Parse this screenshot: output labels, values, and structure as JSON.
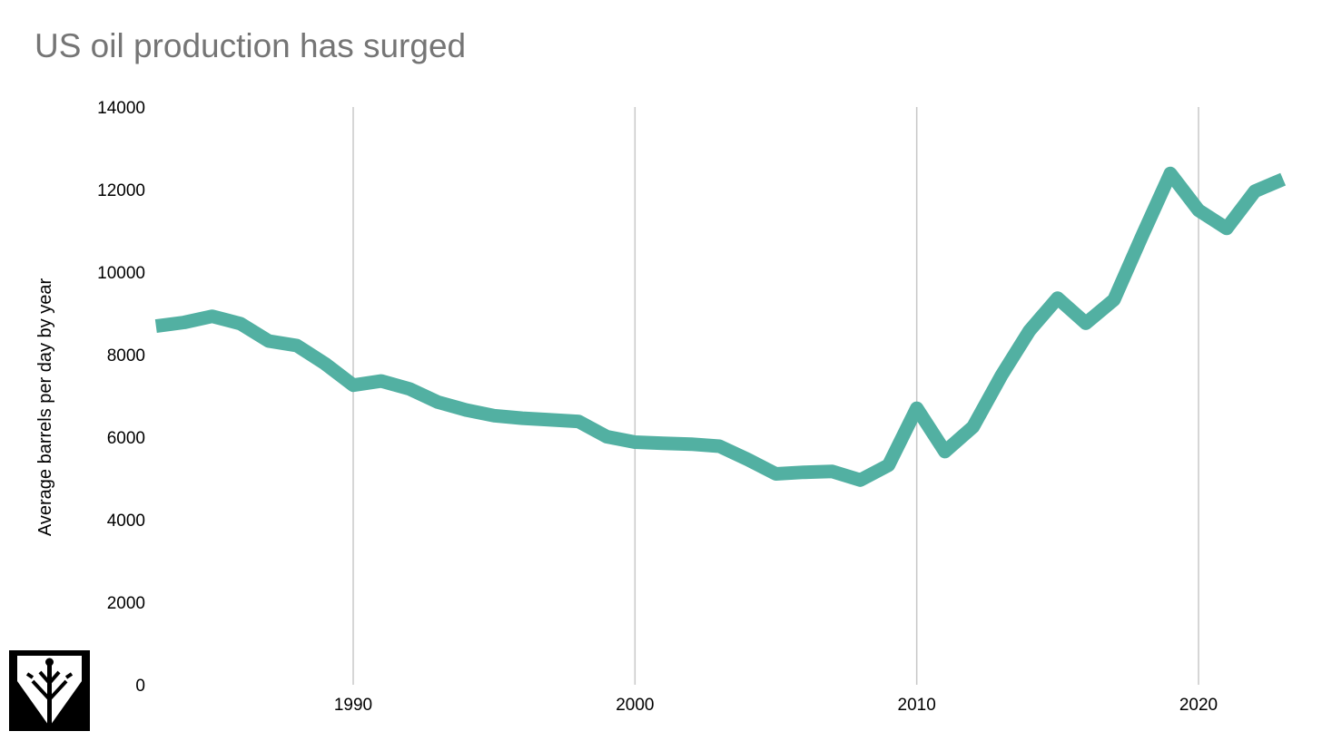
{
  "chart_data": {
    "type": "line",
    "title": "US oil production has surged",
    "xlabel": "",
    "ylabel": "Average barrels per day by year",
    "xlim": [
      1983,
      2023
    ],
    "ylim": [
      0,
      14000
    ],
    "x_ticks": [
      1990,
      2000,
      2010,
      2020
    ],
    "y_ticks": [
      0,
      2000,
      4000,
      6000,
      8000,
      10000,
      12000,
      14000
    ],
    "grid": {
      "vertical": true,
      "horizontal": false
    },
    "legend": "none",
    "series": [
      {
        "color": "#52b0a2",
        "x": [
          1983,
          1984,
          1985,
          1986,
          1987,
          1988,
          1989,
          1990,
          1991,
          1992,
          1993,
          1994,
          1995,
          1996,
          1997,
          1998,
          1999,
          2000,
          2001,
          2002,
          2003,
          2004,
          2005,
          2006,
          2007,
          2008,
          2009,
          2010,
          2011,
          2012,
          2013,
          2014,
          2015,
          2016,
          2017,
          2018,
          2019,
          2020,
          2021,
          2022,
          2023
        ],
        "y": [
          8690,
          8780,
          8930,
          8750,
          8330,
          8220,
          7780,
          7260,
          7360,
          7170,
          6850,
          6660,
          6520,
          6460,
          6420,
          6380,
          6010,
          5880,
          5850,
          5830,
          5780,
          5460,
          5110,
          5150,
          5170,
          4960,
          5320,
          6700,
          5650,
          6250,
          7490,
          8580,
          9370,
          8760,
          9330,
          10880,
          12390,
          11500,
          11060,
          11960,
          12250
        ]
      }
    ]
  }
}
